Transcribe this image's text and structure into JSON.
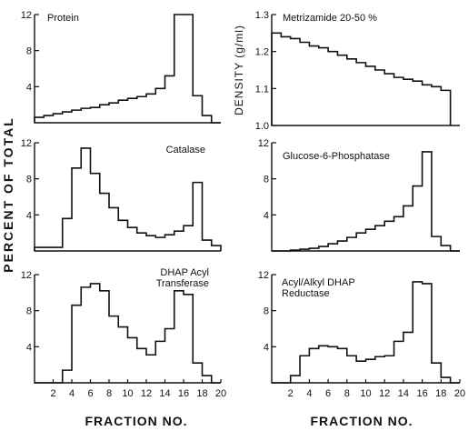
{
  "figure": {
    "ylabel": "PERCENT OF TOTAL",
    "xlabel_left": "FRACTION NO.",
    "xlabel_right": "FRACTION NO."
  },
  "chart_data": [
    {
      "id": "protein",
      "type": "histogram",
      "title": "Protein",
      "title_lines": [
        "Protein"
      ],
      "xlim": [
        0,
        20
      ],
      "ylim": [
        0,
        12
      ],
      "yticks": [
        4,
        8,
        12
      ],
      "x_edges": [
        0,
        1,
        2,
        3,
        4,
        5,
        6,
        7,
        8,
        9,
        10,
        11,
        12,
        13,
        14,
        15,
        16,
        17,
        18,
        19,
        20
      ],
      "values": [
        0.6,
        0.8,
        1.0,
        1.2,
        1.4,
        1.6,
        1.7,
        2.0,
        2.2,
        2.5,
        2.7,
        2.9,
        3.2,
        3.8,
        5.2,
        12.0,
        12.0,
        3.0,
        0.8,
        0
      ]
    },
    {
      "id": "catalase",
      "type": "histogram",
      "title": "Catalase",
      "title_lines": [
        "Catalase"
      ],
      "xlim": [
        0,
        20
      ],
      "ylim": [
        0,
        12
      ],
      "yticks": [
        4,
        8,
        12
      ],
      "x_edges": [
        0,
        1,
        2,
        3,
        4,
        5,
        6,
        7,
        8,
        9,
        10,
        11,
        12,
        13,
        14,
        15,
        16,
        17,
        18,
        19,
        20
      ],
      "values": [
        0.4,
        0.4,
        0.4,
        3.6,
        9.2,
        11.4,
        8.6,
        6.4,
        4.8,
        3.4,
        2.6,
        2.0,
        1.7,
        1.5,
        1.8,
        2.2,
        2.8,
        7.6,
        1.2,
        0.6
      ]
    },
    {
      "id": "dhap-acyl-transferase",
      "type": "histogram",
      "title": "DHAP Acyl Transferase",
      "title_lines": [
        "DHAP Acyl",
        "Transferase"
      ],
      "xlim": [
        0,
        20
      ],
      "ylim": [
        0,
        12
      ],
      "yticks": [
        4,
        8,
        12
      ],
      "xticks": [
        2,
        4,
        6,
        8,
        10,
        12,
        14,
        16,
        18,
        20
      ],
      "x_edges": [
        0,
        1,
        2,
        3,
        4,
        5,
        6,
        7,
        8,
        9,
        10,
        11,
        12,
        13,
        14,
        15,
        16,
        17,
        18,
        19,
        20
      ],
      "values": [
        0,
        0,
        0,
        1.4,
        8.6,
        10.6,
        11.0,
        10.2,
        7.4,
        6.2,
        5.0,
        3.8,
        3.1,
        4.6,
        6.0,
        10.2,
        9.8,
        2.2,
        0.8,
        0
      ]
    },
    {
      "id": "density",
      "type": "histogram",
      "title": "Metrizamide 20-50 %",
      "title_lines": [
        "Metrizamide 20-50 %"
      ],
      "ylabel": "DENSITY (g/ml)",
      "xlim": [
        0,
        20
      ],
      "ylim": [
        1.0,
        1.3
      ],
      "yticks": [
        1.0,
        1.1,
        1.2,
        1.3
      ],
      "x_edges": [
        0,
        1,
        2,
        3,
        4,
        5,
        6,
        7,
        8,
        9,
        10,
        11,
        12,
        13,
        14,
        15,
        16,
        17,
        18,
        19
      ],
      "values": [
        1.25,
        1.24,
        1.235,
        1.225,
        1.215,
        1.21,
        1.2,
        1.19,
        1.18,
        1.17,
        1.16,
        1.15,
        1.14,
        1.13,
        1.125,
        1.12,
        1.11,
        1.105,
        1.095
      ]
    },
    {
      "id": "glucose-6-phosphatase",
      "type": "histogram",
      "title": "Glucose-6-Phosphatase",
      "title_lines": [
        "Glucose-6-Phosphatase"
      ],
      "xlim": [
        0,
        20
      ],
      "ylim": [
        0,
        12
      ],
      "yticks": [
        4,
        8,
        12
      ],
      "x_edges": [
        0,
        1,
        2,
        3,
        4,
        5,
        6,
        7,
        8,
        9,
        10,
        11,
        12,
        13,
        14,
        15,
        16,
        17,
        18,
        19,
        20
      ],
      "values": [
        0,
        0,
        0.1,
        0.2,
        0.3,
        0.5,
        0.8,
        1.1,
        1.5,
        2.0,
        2.4,
        2.8,
        3.3,
        3.8,
        5.0,
        7.2,
        11.0,
        1.6,
        0.6,
        0
      ]
    },
    {
      "id": "acyl-alkyl-dhap-reductase",
      "type": "histogram",
      "title": "Acyl/Alkyl DHAP Reductase",
      "title_lines": [
        "Acyl/Alkyl DHAP",
        "Reductase"
      ],
      "xlim": [
        0,
        20
      ],
      "ylim": [
        0,
        12
      ],
      "yticks": [
        4,
        8,
        12
      ],
      "xticks": [
        2,
        4,
        6,
        8,
        10,
        12,
        14,
        16,
        18,
        20
      ],
      "x_edges": [
        0,
        1,
        2,
        3,
        4,
        5,
        6,
        7,
        8,
        9,
        10,
        11,
        12,
        13,
        14,
        15,
        16,
        17,
        18,
        19,
        20
      ],
      "values": [
        0,
        0,
        0.8,
        3.0,
        3.8,
        4.1,
        4.0,
        3.8,
        3.0,
        2.4,
        2.6,
        2.9,
        3.0,
        4.6,
        5.6,
        11.2,
        11.0,
        2.2,
        0.6,
        0
      ]
    }
  ]
}
